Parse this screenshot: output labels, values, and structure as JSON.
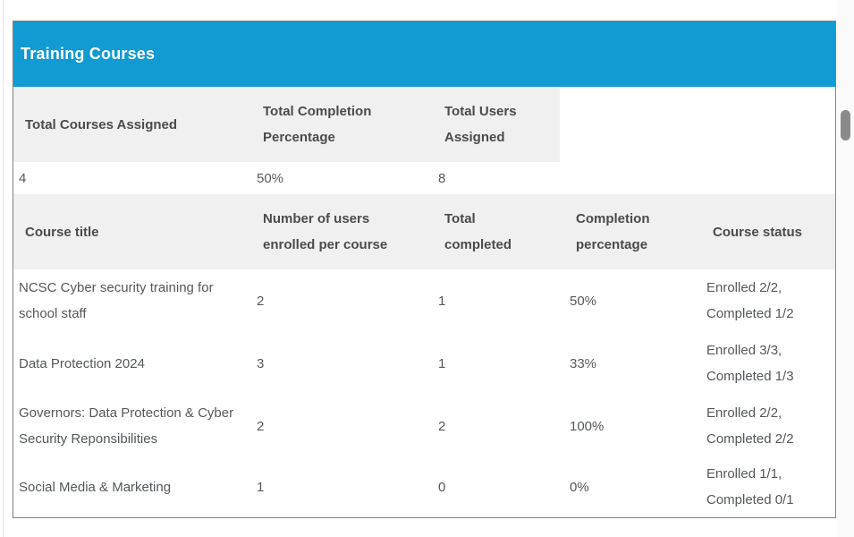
{
  "panel": {
    "title": "Training Courses",
    "accent_color": "#129ad2"
  },
  "summary_table": {
    "columns": {
      "total_courses": "Total Courses Assigned",
      "total_completion": "Total Completion Percentage",
      "total_users": "Total Users Assigned"
    },
    "values": {
      "total_courses": "4",
      "total_completion": "50%",
      "total_users": "8"
    }
  },
  "courses_table": {
    "columns": {
      "title": "Course title",
      "enrolled": "Number of users enrolled per course",
      "completed": "Total completed",
      "percentage": "Completion percentage",
      "status": "Course status"
    },
    "rows": [
      {
        "title": "NCSC Cyber security training for school staff",
        "enrolled": "2",
        "completed": "1",
        "percentage": "50%",
        "status": "Enrolled 2/2, Completed 1/2"
      },
      {
        "title": "Data Protection 2024",
        "enrolled": "3",
        "completed": "1",
        "percentage": "33%",
        "status": "Enrolled 3/3, Completed 1/3"
      },
      {
        "title": "Governors: Data Protection & Cyber Security Reponsibilities",
        "enrolled": "2",
        "completed": "2",
        "percentage": "100%",
        "status": "Enrolled 2/2, Completed 2/2"
      },
      {
        "title": "Social Media & Marketing",
        "enrolled": "1",
        "completed": "0",
        "percentage": "0%",
        "status": "Enrolled 1/1, Completed 0/1"
      }
    ]
  }
}
